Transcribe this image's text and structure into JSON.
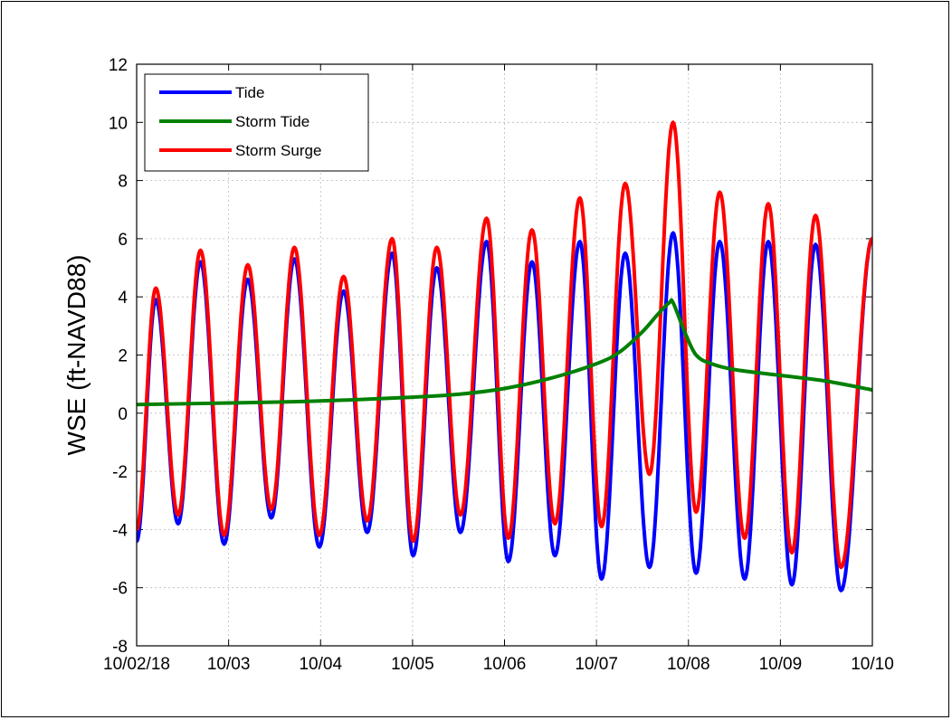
{
  "chart_data": {
    "type": "line",
    "title": "",
    "xlabel": "",
    "ylabel": "WSE (ft-NAVD88)",
    "xlim": [
      "10/02/18",
      "10/10/18"
    ],
    "ylim": [
      -8,
      12
    ],
    "yticks": [
      -8,
      -6,
      -4,
      -2,
      0,
      2,
      4,
      6,
      8,
      10,
      12
    ],
    "xtick_labels": [
      "10/02/18",
      "10/03",
      "10/04",
      "10/05",
      "10/06",
      "10/07",
      "10/08",
      "10/09",
      "10/10"
    ],
    "grid": true,
    "legend_position": "top-left",
    "series": [
      {
        "name": "Tide",
        "color": "#0000ff",
        "extrema": [
          {
            "x": "10/02/18 00:00",
            "y": -4.4
          },
          {
            "x": "10/02/18 05:00",
            "y": 3.9
          },
          {
            "x": "10/02/18 10:50",
            "y": -3.8
          },
          {
            "x": "10/02/18 16:40",
            "y": 5.2
          },
          {
            "x": "10/02/18 22:50",
            "y": -4.5
          },
          {
            "x": "10/03/18 05:00",
            "y": 4.6
          },
          {
            "x": "10/03/18 11:10",
            "y": -3.6
          },
          {
            "x": "10/03/18 17:10",
            "y": 5.3
          },
          {
            "x": "10/03/18 23:40",
            "y": -4.6
          },
          {
            "x": "10/04/18 06:00",
            "y": 4.2
          },
          {
            "x": "10/04/18 12:10",
            "y": -4.1
          },
          {
            "x": "10/04/18 18:40",
            "y": 5.5
          },
          {
            "x": "10/05/18 00:10",
            "y": -4.9
          },
          {
            "x": "10/05/18 06:20",
            "y": 5.0
          },
          {
            "x": "10/05/18 12:30",
            "y": -4.1
          },
          {
            "x": "10/05/18 19:20",
            "y": 5.9
          },
          {
            "x": "10/06/18 01:00",
            "y": -5.1
          },
          {
            "x": "10/06/18 07:10",
            "y": 5.2
          },
          {
            "x": "10/06/18 13:10",
            "y": -4.9
          },
          {
            "x": "10/06/18 19:40",
            "y": 5.9
          },
          {
            "x": "10/07/18 01:20",
            "y": -5.7
          },
          {
            "x": "10/07/18 07:30",
            "y": 5.5
          },
          {
            "x": "10/07/18 13:50",
            "y": -5.3
          },
          {
            "x": "10/07/18 20:00",
            "y": 6.2
          },
          {
            "x": "10/08/18 02:00",
            "y": -5.5
          },
          {
            "x": "10/08/18 08:10",
            "y": 5.9
          },
          {
            "x": "10/08/18 14:40",
            "y": -5.7
          },
          {
            "x": "10/08/18 20:50",
            "y": 5.9
          },
          {
            "x": "10/09/18 03:00",
            "y": -5.9
          },
          {
            "x": "10/09/18 09:10",
            "y": 5.8
          },
          {
            "x": "10/09/18 15:50",
            "y": -6.1
          },
          {
            "x": "10/10/18 00:00",
            "y": 6.0
          }
        ]
      },
      {
        "name": "Storm Tide",
        "color": "#008000",
        "points": [
          {
            "x": "10/02/18 00:00",
            "y": 0.3
          },
          {
            "x": "10/03/18 00:00",
            "y": 0.35
          },
          {
            "x": "10/04/18 00:00",
            "y": 0.42
          },
          {
            "x": "10/05/18 00:00",
            "y": 0.55
          },
          {
            "x": "10/05/18 12:00",
            "y": 0.65
          },
          {
            "x": "10/06/18 00:00",
            "y": 0.85
          },
          {
            "x": "10/06/18 12:00",
            "y": 1.2
          },
          {
            "x": "10/07/18 00:00",
            "y": 1.7
          },
          {
            "x": "10/07/18 06:00",
            "y": 2.1
          },
          {
            "x": "10/07/18 12:00",
            "y": 2.8
          },
          {
            "x": "10/07/18 16:00",
            "y": 3.4
          },
          {
            "x": "10/07/18 19:00",
            "y": 3.8
          },
          {
            "x": "10/07/18 20:00",
            "y": 3.8
          },
          {
            "x": "10/07/18 23:00",
            "y": 2.8
          },
          {
            "x": "10/08/18 02:00",
            "y": 2.0
          },
          {
            "x": "10/08/18 06:00",
            "y": 1.7
          },
          {
            "x": "10/08/18 12:00",
            "y": 1.5
          },
          {
            "x": "10/09/18 00:00",
            "y": 1.3
          },
          {
            "x": "10/09/18 12:00",
            "y": 1.1
          },
          {
            "x": "10/10/18 00:00",
            "y": 0.8
          }
        ]
      },
      {
        "name": "Storm Surge",
        "color": "#ff0000",
        "extrema": [
          {
            "x": "10/02/18 00:00",
            "y": -4.0
          },
          {
            "x": "10/02/18 05:00",
            "y": 4.3
          },
          {
            "x": "10/02/18 10:50",
            "y": -3.5
          },
          {
            "x": "10/02/18 16:40",
            "y": 5.6
          },
          {
            "x": "10/02/18 22:50",
            "y": -4.2
          },
          {
            "x": "10/03/18 05:00",
            "y": 5.1
          },
          {
            "x": "10/03/18 11:10",
            "y": -3.3
          },
          {
            "x": "10/03/18 17:10",
            "y": 5.7
          },
          {
            "x": "10/03/18 23:40",
            "y": -4.2
          },
          {
            "x": "10/04/18 06:00",
            "y": 4.7
          },
          {
            "x": "10/04/18 12:10",
            "y": -3.7
          },
          {
            "x": "10/04/18 18:40",
            "y": 6.0
          },
          {
            "x": "10/05/18 00:10",
            "y": -4.4
          },
          {
            "x": "10/05/18 06:20",
            "y": 5.7
          },
          {
            "x": "10/05/18 12:30",
            "y": -3.5
          },
          {
            "x": "10/05/18 19:20",
            "y": 6.7
          },
          {
            "x": "10/06/18 01:00",
            "y": -4.3
          },
          {
            "x": "10/06/18 07:10",
            "y": 6.3
          },
          {
            "x": "10/06/18 13:10",
            "y": -3.8
          },
          {
            "x": "10/06/18 19:40",
            "y": 7.4
          },
          {
            "x": "10/07/18 01:20",
            "y": -3.9
          },
          {
            "x": "10/07/18 07:30",
            "y": 7.9
          },
          {
            "x": "10/07/18 13:50",
            "y": -2.1
          },
          {
            "x": "10/07/18 20:00",
            "y": 10.0
          },
          {
            "x": "10/08/18 02:00",
            "y": -3.4
          },
          {
            "x": "10/08/18 08:10",
            "y": 7.6
          },
          {
            "x": "10/08/18 14:40",
            "y": -4.3
          },
          {
            "x": "10/08/18 20:50",
            "y": 7.2
          },
          {
            "x": "10/09/18 03:00",
            "y": -4.8
          },
          {
            "x": "10/09/18 09:10",
            "y": 6.8
          },
          {
            "x": "10/09/18 15:50",
            "y": -5.3
          },
          {
            "x": "10/10/18 00:00",
            "y": 6.0
          }
        ]
      }
    ]
  }
}
